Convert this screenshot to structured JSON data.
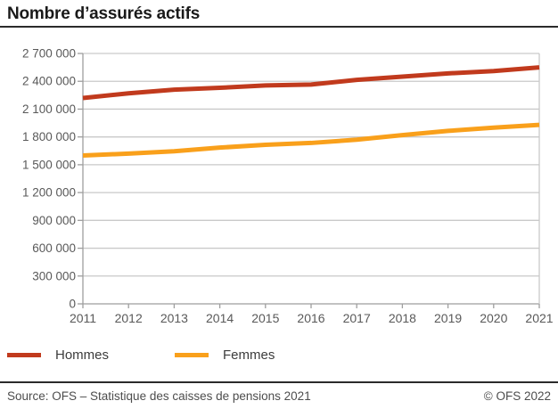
{
  "title": "Nombre d’assurés actifs",
  "chart_data": {
    "type": "line",
    "x": [
      2011,
      2012,
      2013,
      2014,
      2015,
      2016,
      2017,
      2018,
      2019,
      2020,
      2021
    ],
    "series": [
      {
        "name": "Hommes",
        "color": "#c13a1d",
        "values": [
          2220000,
          2270000,
          2310000,
          2330000,
          2355000,
          2365000,
          2415000,
          2450000,
          2485000,
          2510000,
          2550000
        ]
      },
      {
        "name": "Femmes",
        "color": "#f9a01b",
        "values": [
          1600000,
          1620000,
          1645000,
          1685000,
          1715000,
          1735000,
          1770000,
          1820000,
          1865000,
          1900000,
          1930000
        ]
      }
    ],
    "ylim": [
      0,
      2700000
    ],
    "ytick_step": 300000,
    "yticks": [
      0,
      300000,
      600000,
      900000,
      1200000,
      1500000,
      1800000,
      2100000,
      2400000,
      2700000
    ],
    "grid": true,
    "legend_position": "bottom-left",
    "xlabel": "",
    "ylabel": ""
  },
  "footer": {
    "source": "Source: OFS – Statistique des caisses de pensions 2021",
    "copyright": "© OFS 2022"
  },
  "colors": {
    "grid": "#c9c9c9",
    "axis": "#9e9e9e",
    "tick_text": "#595959",
    "rule": "#2b2b2b"
  }
}
